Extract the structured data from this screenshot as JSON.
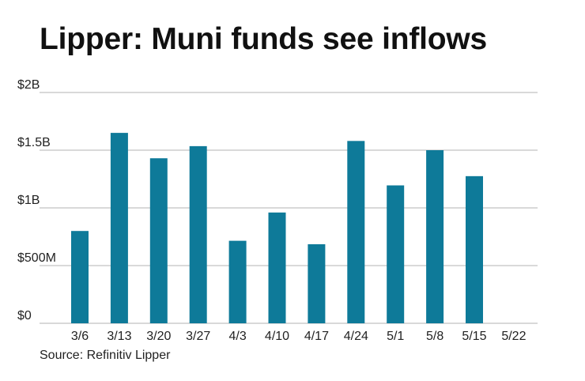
{
  "chart_data": {
    "type": "bar",
    "title": "Lipper: Muni funds see inflows",
    "source": "Source: Refinitiv Lipper",
    "categories": [
      "3/6",
      "3/13",
      "3/20",
      "3/27",
      "4/3",
      "4/10",
      "4/17",
      "4/24",
      "5/1",
      "5/8",
      "5/15",
      "5/22"
    ],
    "values": [
      800000000,
      1650000000,
      1430000000,
      1535000000,
      715000000,
      960000000,
      685000000,
      1580000000,
      1195000000,
      1500000000,
      1275000000,
      0
    ],
    "ylim": [
      0,
      2000000000
    ],
    "yticks": [
      0,
      500000000,
      1000000000,
      1500000000,
      2000000000
    ],
    "ytick_labels": [
      "$0",
      "$500M",
      "$1B",
      "$1.5B",
      "$2B"
    ],
    "xlabel": "",
    "ylabel": "",
    "grid": true,
    "bar_color": "#0e7a99",
    "grid_color": "#b3b3b3"
  }
}
